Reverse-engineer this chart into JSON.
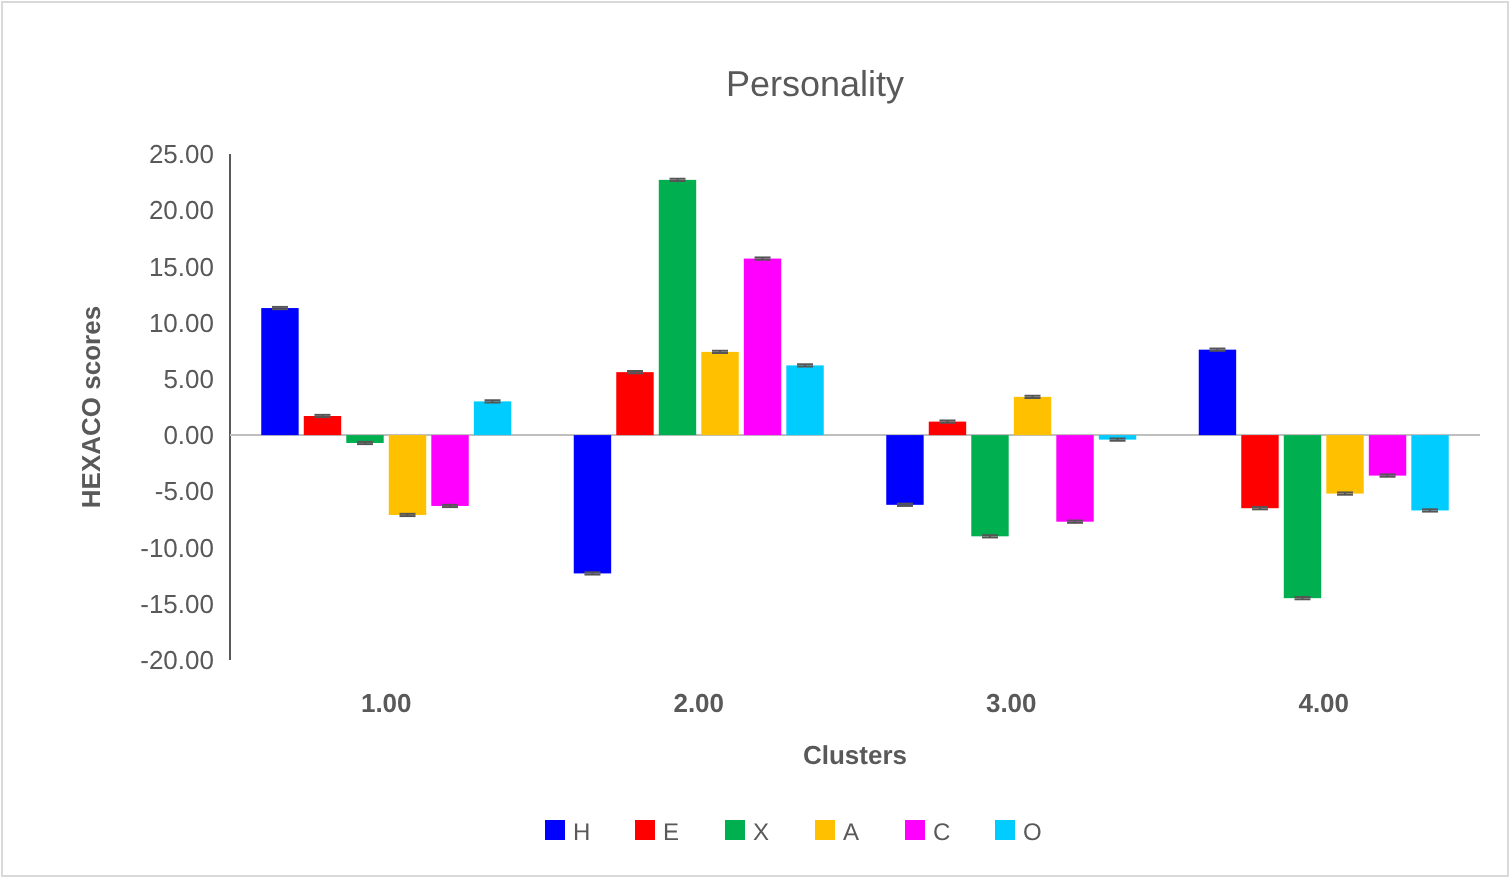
{
  "chart_data": {
    "type": "bar",
    "title": "Personality",
    "xlabel": "Clusters",
    "ylabel": "HEXACO scores",
    "categories": [
      "1.00",
      "2.00",
      "3.00",
      "4.00"
    ],
    "series": [
      {
        "name": "H",
        "color": "#0000ff",
        "values": [
          11.3,
          -12.3,
          -6.2,
          7.6
        ],
        "errors": [
          0.1,
          0.1,
          0.1,
          0.1
        ]
      },
      {
        "name": "E",
        "color": "#ff0000",
        "values": [
          1.7,
          5.6,
          1.2,
          -6.5
        ],
        "errors": [
          0.1,
          0.1,
          0.1,
          0.1
        ]
      },
      {
        "name": "X",
        "color": "#00b050",
        "values": [
          -0.7,
          22.7,
          -9.0,
          -14.5
        ],
        "errors": [
          0.1,
          0.1,
          0.1,
          0.1
        ]
      },
      {
        "name": "A",
        "color": "#ffc000",
        "values": [
          -7.1,
          7.4,
          3.4,
          -5.2
        ],
        "errors": [
          0.1,
          0.1,
          0.1,
          0.1
        ]
      },
      {
        "name": "C",
        "color": "#ff00ff",
        "values": [
          -6.3,
          15.7,
          -7.7,
          -3.6
        ],
        "errors": [
          0.1,
          0.1,
          0.1,
          0.1
        ]
      },
      {
        "name": "O",
        "color": "#00ccff",
        "values": [
          3.0,
          6.2,
          -0.4,
          -6.7
        ],
        "errors": [
          0.1,
          0.1,
          0.1,
          0.1
        ]
      }
    ],
    "ylim": [
      -20,
      25
    ],
    "yticks": [
      {
        "value": -20,
        "label": "-20.00"
      },
      {
        "value": -15,
        "label": "-15.00"
      },
      {
        "value": -10,
        "label": "-10.00"
      },
      {
        "value": -5,
        "label": "-5.00"
      },
      {
        "value": 0,
        "label": "0.00"
      },
      {
        "value": 5,
        "label": "5.00"
      },
      {
        "value": 10,
        "label": "10.00"
      },
      {
        "value": 15,
        "label": "15.00"
      },
      {
        "value": 20,
        "label": "20.00"
      },
      {
        "value": 25,
        "label": "25.00"
      }
    ],
    "legend": "bottom"
  }
}
